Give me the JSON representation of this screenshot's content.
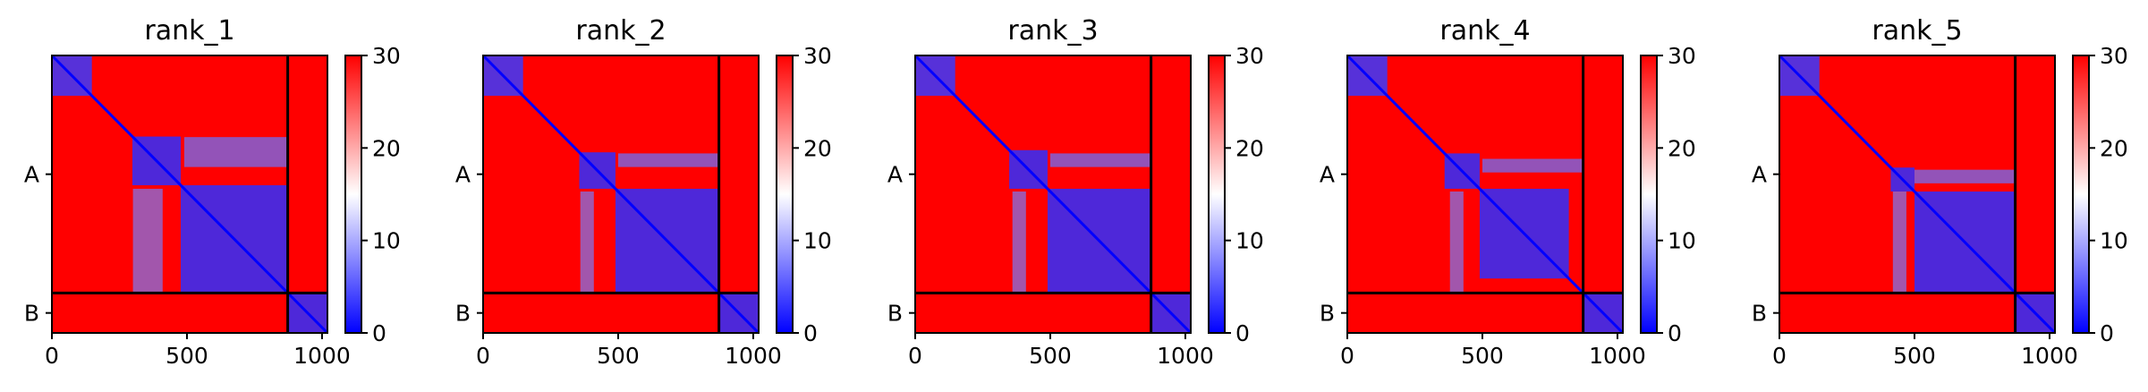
{
  "chart_data": [
    {
      "type": "heatmap",
      "title": "rank_1",
      "x_ticks": [
        "0",
        "500",
        "1000"
      ],
      "x_tick_values": [
        0,
        500,
        1000
      ],
      "y_ticks": [
        "A",
        "B"
      ],
      "xlim": [
        0,
        1020
      ],
      "chain_boundary": 873,
      "colorbar": {
        "ticks": [
          "0",
          "10",
          "20",
          "30"
        ],
        "tick_values": [
          0,
          10,
          20,
          30
        ],
        "range": [
          0,
          30
        ]
      },
      "blue_blocks": [
        [
          0,
          148
        ],
        [
          298,
          477
        ],
        [
          477,
          873
        ],
        [
          873,
          1020
        ]
      ],
      "extended_blue_row_band": [
        [
          300,
          410
        ],
        [
          490,
          873
        ]
      ],
      "colors": {
        "low": "#0000ff",
        "mid": "#ffffff",
        "high": "#ff0000"
      }
    },
    {
      "type": "heatmap",
      "title": "rank_2",
      "x_ticks": [
        "0",
        "500",
        "1000"
      ],
      "x_tick_values": [
        0,
        500,
        1000
      ],
      "y_ticks": [
        "A",
        "B"
      ],
      "xlim": [
        0,
        1020
      ],
      "chain_boundary": 873,
      "colorbar": {
        "ticks": [
          "0",
          "10",
          "20",
          "30"
        ],
        "tick_values": [
          0,
          10,
          20,
          30
        ],
        "range": [
          0,
          30
        ]
      },
      "blue_blocks": [
        [
          0,
          148
        ],
        [
          356,
          490
        ],
        [
          490,
          873
        ],
        [
          873,
          1020
        ]
      ],
      "extended_blue_row_band": [
        [
          360,
          410
        ],
        [
          500,
          873
        ]
      ],
      "colors": {
        "low": "#0000ff",
        "mid": "#ffffff",
        "high": "#ff0000"
      }
    },
    {
      "type": "heatmap",
      "title": "rank_3",
      "x_ticks": [
        "0",
        "500",
        "1000"
      ],
      "x_tick_values": [
        0,
        500,
        1000
      ],
      "y_ticks": [
        "A",
        "B"
      ],
      "xlim": [
        0,
        1020
      ],
      "chain_boundary": 873,
      "colorbar": {
        "ticks": [
          "0",
          "10",
          "20",
          "30"
        ],
        "tick_values": [
          0,
          10,
          20,
          30
        ],
        "range": [
          0,
          30
        ]
      },
      "blue_blocks": [
        [
          0,
          148
        ],
        [
          348,
          490
        ],
        [
          490,
          873
        ],
        [
          873,
          1020
        ]
      ],
      "extended_blue_row_band": [
        [
          360,
          410
        ],
        [
          500,
          873
        ]
      ],
      "colors": {
        "low": "#0000ff",
        "mid": "#ffffff",
        "high": "#ff0000"
      }
    },
    {
      "type": "heatmap",
      "title": "rank_4",
      "x_ticks": [
        "0",
        "500",
        "1000"
      ],
      "x_tick_values": [
        0,
        500,
        1000
      ],
      "y_ticks": [
        "A",
        "B"
      ],
      "xlim": [
        0,
        1020
      ],
      "chain_boundary": 873,
      "colorbar": {
        "ticks": [
          "0",
          "10",
          "20",
          "30"
        ],
        "tick_values": [
          0,
          10,
          20,
          30
        ],
        "range": [
          0,
          30
        ]
      },
      "blue_blocks": [
        [
          0,
          148
        ],
        [
          360,
          490
        ],
        [
          490,
          820
        ],
        [
          873,
          1020
        ]
      ],
      "extended_blue_row_band": [
        [
          380,
          430
        ],
        [
          500,
          870
        ]
      ],
      "colors": {
        "low": "#0000ff",
        "mid": "#ffffff",
        "high": "#ff0000"
      }
    },
    {
      "type": "heatmap",
      "title": "rank_5",
      "x_ticks": [
        "0",
        "500",
        "1000"
      ],
      "x_tick_values": [
        0,
        500,
        1000
      ],
      "y_ticks": [
        "A",
        "B"
      ],
      "xlim": [
        0,
        1020
      ],
      "chain_boundary": 873,
      "colorbar": {
        "ticks": [
          "0",
          "10",
          "20",
          "30"
        ],
        "tick_values": [
          0,
          10,
          20,
          30
        ],
        "range": [
          0,
          30
        ]
      },
      "blue_blocks": [
        [
          0,
          148
        ],
        [
          412,
          500
        ],
        [
          500,
          870
        ],
        [
          873,
          1020
        ]
      ],
      "extended_blue_row_band": [
        [
          420,
          470
        ],
        [
          500,
          870
        ]
      ],
      "colors": {
        "low": "#0000ff",
        "mid": "#ffffff",
        "high": "#ff0000"
      }
    }
  ]
}
